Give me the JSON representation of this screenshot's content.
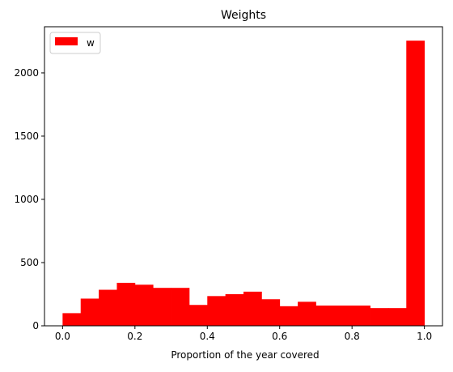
{
  "chart_data": {
    "type": "bar",
    "title": "Weights",
    "xlabel": "Proportion of the year covered",
    "ylabel": "",
    "xlim": [
      -0.05,
      1.05
    ],
    "ylim": [
      0,
      2365
    ],
    "x_ticks": [
      0.0,
      0.2,
      0.4,
      0.6,
      0.8,
      1.0
    ],
    "x_tick_labels": [
      "0.0",
      "0.2",
      "0.4",
      "0.6",
      "0.8",
      "1.0"
    ],
    "y_ticks": [
      0,
      500,
      1000,
      1500,
      2000
    ],
    "y_tick_labels": [
      "0",
      "500",
      "1000",
      "1500",
      "2000"
    ],
    "grid": false,
    "legend": {
      "position": "top-left",
      "entries": [
        {
          "label": "w",
          "color": "#ff0000"
        }
      ]
    },
    "bin_edges": [
      0.0,
      0.05,
      0.1,
      0.15,
      0.2,
      0.25,
      0.3,
      0.35,
      0.4,
      0.45,
      0.5,
      0.55,
      0.6,
      0.65,
      0.7,
      0.75,
      0.8,
      0.85,
      0.9,
      0.95,
      1.0
    ],
    "series": [
      {
        "name": "w",
        "color": "#ff0000",
        "values": [
          100,
          215,
          285,
          340,
          325,
          300,
          300,
          165,
          235,
          250,
          270,
          210,
          155,
          190,
          160,
          160,
          160,
          140,
          140,
          2255
        ]
      }
    ]
  }
}
